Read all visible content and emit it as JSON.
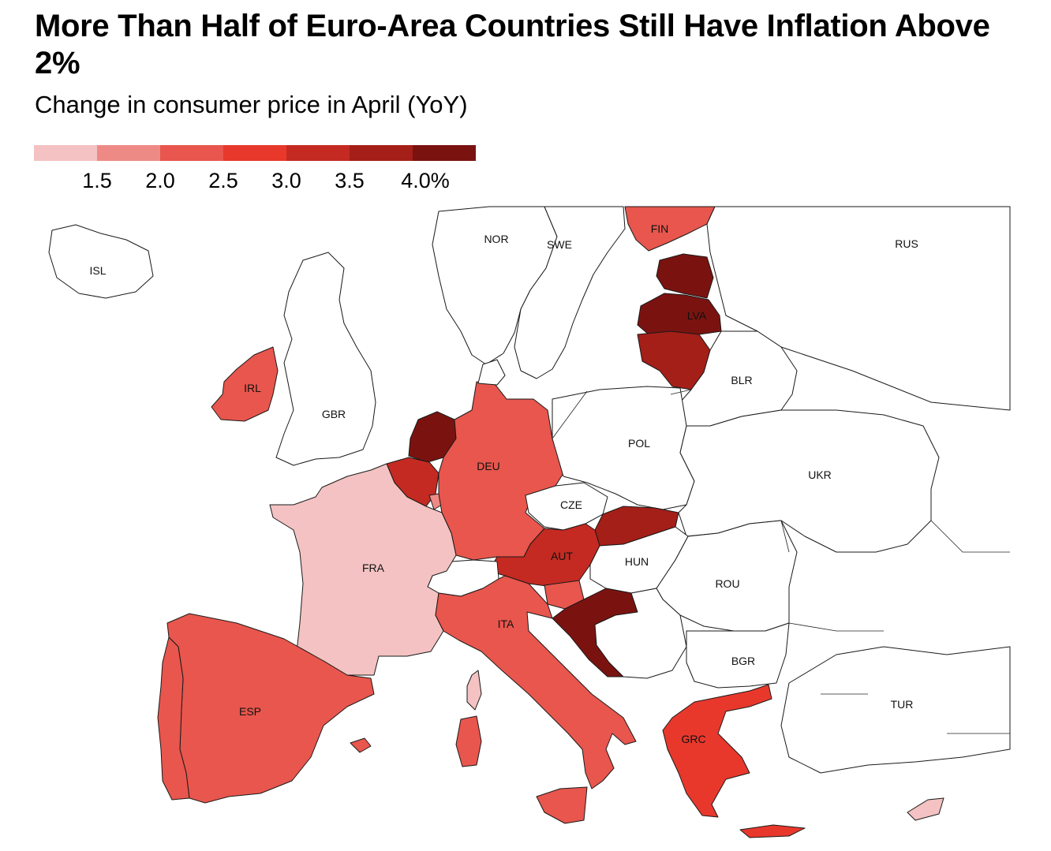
{
  "title": "More Than Half of Euro-Area Countries Still Have Inflation Above 2%",
  "subtitle": "Change in consumer price in April (YoY)",
  "legend": {
    "colors": [
      "#f4c2c2",
      "#ee8a85",
      "#e8564d",
      "#e8382c",
      "#c42a22",
      "#a41f18",
      "#7a1310"
    ],
    "ticks": [
      "1.5",
      "2.0",
      "2.5",
      "3.0",
      "3.5",
      "4.0%"
    ]
  },
  "map": {
    "no_data_color": "#ffffff",
    "labels": {
      "ISL": "ISL",
      "NOR": "NOR",
      "SWE": "SWE",
      "FIN": "FIN",
      "RUS": "RUS",
      "IRL": "IRL",
      "GBR": "GBR",
      "LVA": "LVA",
      "BLR": "BLR",
      "POL": "POL",
      "DEU": "DEU",
      "UKR": "UKR",
      "CZE": "CZE",
      "AUT": "AUT",
      "HUN": "HUN",
      "FRA": "FRA",
      "ROU": "ROU",
      "ITA": "ITA",
      "BGR": "BGR",
      "ESP": "ESP",
      "TUR": "TUR",
      "GRC": "GRC"
    }
  }
}
